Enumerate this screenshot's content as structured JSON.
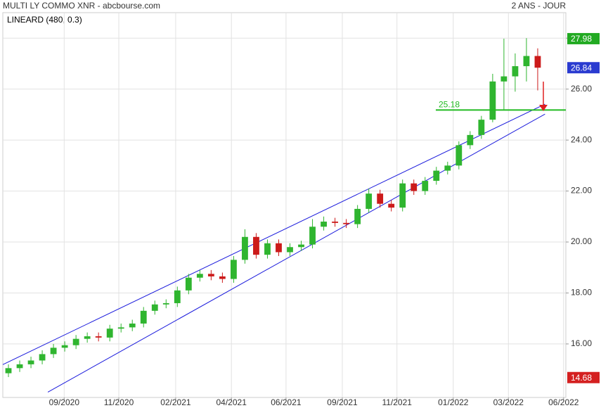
{
  "chart_data": {
    "type": "candlestick",
    "title": "MULTI LY COMMO XNR - abcbourse.com",
    "period": "2 ANS - JOUR",
    "indicator": "LINEARD (480, 0.3)",
    "xlim": [
      0,
      100
    ],
    "ylim": [
      13.9,
      29.0
    ],
    "xticks": [
      {
        "value": 10.9,
        "label": "09/2020"
      },
      {
        "value": 20.6,
        "label": "11/2020"
      },
      {
        "value": 30.7,
        "label": "02/2021"
      },
      {
        "value": 40.6,
        "label": "04/2021"
      },
      {
        "value": 50.3,
        "label": "06/2021"
      },
      {
        "value": 60.3,
        "label": "09/2021"
      },
      {
        "value": 70.0,
        "label": "11/2021"
      },
      {
        "value": 80.0,
        "label": "01/2022"
      },
      {
        "value": 89.8,
        "label": "03/2022"
      },
      {
        "value": 99.6,
        "label": "06/2022"
      }
    ],
    "yticks": [
      {
        "value": 16,
        "label": "16.00"
      },
      {
        "value": 18,
        "label": "18.00"
      },
      {
        "value": 20,
        "label": "20.00"
      },
      {
        "value": 22,
        "label": "22.00"
      },
      {
        "value": 24,
        "label": "24.00"
      },
      {
        "value": 26,
        "label": "26.00"
      },
      {
        "value": 28,
        "label": "28.00"
      }
    ],
    "grid": true,
    "up_color": "#2fb52f",
    "down_color": "#cc1a1a",
    "series": [
      {
        "x": [
          1,
          3,
          5,
          7,
          9,
          11,
          13,
          15,
          17,
          19,
          21,
          23,
          25,
          27,
          29,
          31,
          33,
          35,
          37,
          39,
          41,
          43,
          45,
          47,
          49,
          51,
          53,
          55,
          57,
          59,
          61,
          63,
          65,
          67,
          69,
          71,
          73,
          75,
          77,
          79,
          81,
          83,
          85,
          87,
          89,
          91,
          93,
          95
        ],
        "open": [
          14.85,
          15.05,
          15.2,
          15.35,
          15.6,
          15.85,
          15.95,
          16.2,
          16.3,
          16.25,
          16.6,
          16.65,
          16.8,
          17.3,
          17.55,
          17.6,
          18.1,
          18.6,
          18.75,
          18.65,
          18.55,
          19.3,
          20.2,
          19.5,
          19.95,
          19.6,
          19.8,
          19.9,
          20.6,
          20.8,
          20.75,
          20.7,
          21.3,
          21.9,
          21.5,
          21.35,
          22.3,
          22.0,
          22.4,
          22.8,
          23.0,
          23.8,
          24.2,
          24.8,
          26.3,
          26.5,
          26.9,
          27.3
        ],
        "high": [
          15.2,
          15.35,
          15.5,
          15.75,
          16.0,
          16.1,
          16.35,
          16.45,
          16.45,
          16.75,
          16.8,
          16.95,
          17.45,
          17.7,
          17.75,
          18.25,
          18.75,
          18.9,
          18.9,
          18.8,
          19.45,
          20.5,
          20.35,
          20.1,
          20.1,
          19.95,
          20.05,
          20.9,
          21.0,
          20.95,
          20.9,
          21.45,
          22.1,
          22.05,
          21.65,
          22.45,
          22.45,
          22.55,
          22.95,
          23.15,
          23.95,
          24.35,
          24.95,
          26.6,
          27.98,
          27.4,
          28.0,
          27.6
        ],
        "low": [
          14.7,
          14.9,
          15.05,
          15.2,
          15.45,
          15.7,
          15.8,
          16.05,
          16.1,
          16.1,
          16.45,
          16.5,
          16.65,
          17.15,
          17.4,
          17.45,
          17.95,
          18.45,
          18.5,
          18.4,
          18.4,
          19.15,
          19.35,
          19.35,
          19.45,
          19.45,
          19.65,
          19.75,
          20.45,
          20.6,
          20.55,
          20.55,
          21.15,
          21.35,
          21.2,
          21.2,
          21.85,
          21.85,
          22.25,
          22.65,
          22.85,
          23.65,
          24.05,
          24.7,
          25.2,
          25.9,
          26.3,
          25.95
        ],
        "close": [
          15.05,
          15.2,
          15.35,
          15.6,
          15.85,
          15.95,
          16.2,
          16.3,
          16.25,
          16.6,
          16.65,
          16.8,
          17.3,
          17.55,
          17.6,
          18.1,
          18.6,
          18.75,
          18.65,
          18.55,
          19.3,
          20.2,
          19.5,
          19.95,
          19.6,
          19.8,
          19.9,
          20.6,
          20.8,
          20.75,
          20.7,
          21.3,
          21.9,
          21.5,
          21.35,
          22.3,
          22.0,
          22.4,
          22.8,
          23.0,
          23.8,
          24.2,
          24.8,
          26.3,
          26.5,
          26.9,
          27.3,
          26.84
        ]
      }
    ],
    "channel": [
      {
        "color": "#1a1adc",
        "x": [
          0,
          96.3
        ],
        "y": [
          15.19,
          25.41
        ]
      },
      {
        "color": "#1a1adc",
        "x": [
          8.0,
          96.3
        ],
        "y": [
          14.11,
          25.02
        ]
      }
    ],
    "support": {
      "value": 25.18,
      "x": [
        76.9,
        100
      ],
      "color": "#22bb22"
    },
    "price_tags": [
      {
        "value": 27.98,
        "color": "#22aa22"
      },
      {
        "value": 26.84,
        "color": "#2a3bd0"
      },
      {
        "value": 14.68,
        "color": "#d42020"
      }
    ]
  }
}
